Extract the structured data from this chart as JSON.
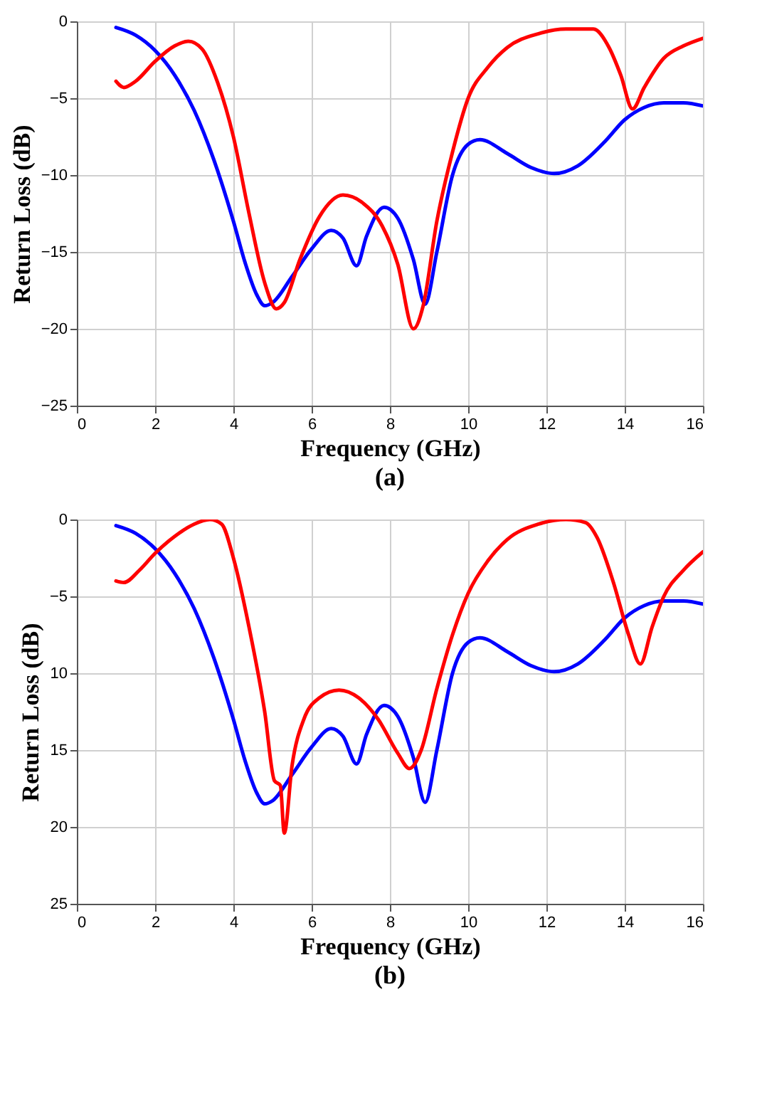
{
  "chart_data": [
    {
      "type": "line",
      "title": "(a)",
      "xlabel": "Frequency (GHz)",
      "ylabel": "Return Loss (dB)",
      "xlim": [
        0,
        16
      ],
      "xticks": [
        0,
        2,
        4,
        6,
        8,
        10,
        12,
        14,
        16
      ],
      "ylim": [
        -25,
        0
      ],
      "yticks": [
        0,
        -5,
        -10,
        -15,
        -20,
        -25
      ],
      "grid": true,
      "marker": "none",
      "line_style": "solid",
      "series": [
        {
          "color": "#0000ff",
          "x": [
            1,
            1.5,
            2,
            2.5,
            3,
            3.5,
            4,
            4.3,
            4.6,
            4.8,
            5,
            5.5,
            6,
            6.5,
            6.8,
            7.15,
            7.4,
            7.85,
            8.2,
            8.6,
            8.9,
            9.2,
            9.6,
            10,
            10.3,
            11,
            11.6,
            12.2,
            12.8,
            13.5,
            14,
            14.5,
            15,
            15.5,
            16
          ],
          "values": [
            -0.4,
            -0.9,
            -1.9,
            -3.5,
            -5.8,
            -9,
            -13,
            -15.7,
            -17.8,
            -18.5,
            -18.3,
            -16.6,
            -14.8,
            -13.6,
            -14.1,
            -15.9,
            -14,
            -12.1,
            -12.8,
            -15.5,
            -18.4,
            -15,
            -10,
            -8,
            -7.7,
            -8.6,
            -9.5,
            -9.9,
            -9.4,
            -7.8,
            -6.4,
            -5.6,
            -5.3,
            -5.3,
            -5.5
          ]
        },
        {
          "color": "#ff0000",
          "x": [
            1,
            1.2,
            1.5,
            2,
            2.5,
            2.85,
            3.2,
            3.6,
            4,
            4.4,
            4.8,
            5.1,
            5.3,
            5.7,
            6.2,
            6.8,
            7.3,
            7.8,
            8.2,
            8.6,
            8.85,
            9.2,
            9.6,
            10,
            10.5,
            11,
            11.8,
            12.5,
            13.2,
            13.6,
            13.9,
            14.2,
            14.5,
            15,
            15.5,
            16
          ],
          "values": [
            -3.9,
            -4.3,
            -3.9,
            -2.6,
            -1.6,
            -1.3,
            -1.8,
            -4,
            -7.5,
            -12.5,
            -17,
            -18.7,
            -18.3,
            -15.5,
            -12.7,
            -11.3,
            -11.8,
            -13.3,
            -15.8,
            -20,
            -18.5,
            -13,
            -8.5,
            -5,
            -3,
            -1.7,
            -0.8,
            -0.5,
            -0.5,
            -1.7,
            -3.5,
            -5.7,
            -4.3,
            -2.4,
            -1.6,
            -1.1
          ]
        }
      ]
    },
    {
      "type": "line",
      "title": "(b)",
      "xlabel": "Frequency (GHz)",
      "ylabel": "Return Loss (dB)",
      "xlim": [
        0,
        16
      ],
      "xticks": [
        0,
        2,
        4,
        6,
        8,
        10,
        12,
        14,
        16
      ],
      "ylim": [
        -25,
        0
      ],
      "yticks": [
        0,
        -5,
        {
          "value": -10,
          "label": "10"
        },
        {
          "value": -15,
          "label": "15"
        },
        {
          "value": -20,
          "label": "20"
        },
        {
          "value": -25,
          "label": "25"
        }
      ],
      "grid": true,
      "marker": "none",
      "line_style": "solid",
      "series": [
        {
          "color": "#0000ff",
          "x": [
            1,
            1.5,
            2,
            2.5,
            3,
            3.5,
            4,
            4.3,
            4.6,
            4.8,
            5,
            5.5,
            6,
            6.5,
            6.8,
            7.15,
            7.4,
            7.85,
            8.2,
            8.6,
            8.9,
            9.2,
            9.6,
            10,
            10.3,
            11,
            11.6,
            12.2,
            12.8,
            13.5,
            14,
            14.5,
            15,
            15.5,
            16
          ],
          "values": [
            -0.4,
            -0.9,
            -1.9,
            -3.5,
            -5.8,
            -9,
            -13,
            -15.7,
            -17.8,
            -18.5,
            -18.3,
            -16.6,
            -14.8,
            -13.6,
            -14.1,
            -15.9,
            -14,
            -12.1,
            -12.8,
            -15.5,
            -18.4,
            -15,
            -10,
            -8,
            -7.7,
            -8.6,
            -9.5,
            -9.9,
            -9.4,
            -7.8,
            -6.4,
            -5.6,
            -5.3,
            -5.3,
            -5.5
          ]
        },
        {
          "color": "#ff0000",
          "x": [
            1,
            1.2,
            1.6,
            2,
            2.5,
            3,
            3.4,
            3.7,
            4,
            4.4,
            4.8,
            5.05,
            5.2,
            5.3,
            5.5,
            5.8,
            6.2,
            6.7,
            7.2,
            7.7,
            8.2,
            8.5,
            8.8,
            9.2,
            9.6,
            10,
            10.5,
            11,
            11.8,
            12.5,
            13,
            13.3,
            13.7,
            14.1,
            14.4,
            14.7,
            15,
            15.5,
            16
          ],
          "values": [
            -4,
            -4.1,
            -3.3,
            -2.2,
            -1.1,
            -0.3,
            0,
            -0.3,
            -2.5,
            -7,
            -12.5,
            -17,
            -17.3,
            -20.4,
            -16,
            -13,
            -11.6,
            -11.1,
            -11.6,
            -13,
            -15.2,
            -16.2,
            -15,
            -11,
            -7.5,
            -4.8,
            -2.7,
            -1.3,
            -0.3,
            0,
            -0.2,
            -1.2,
            -4,
            -7.5,
            -9.4,
            -7,
            -5,
            -3.3,
            -2.1
          ]
        }
      ]
    }
  ]
}
